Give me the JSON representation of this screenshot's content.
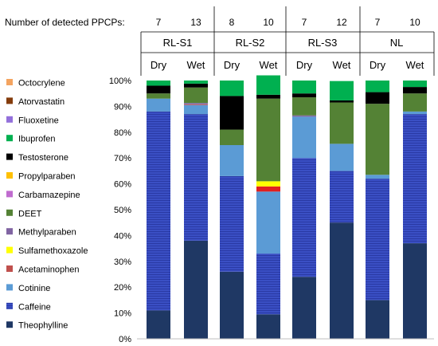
{
  "header": {
    "count_label": "Number of detected PPCPs:",
    "counts": [
      "7",
      "13",
      "8",
      "10",
      "7",
      "12",
      "7",
      "10"
    ],
    "groups": [
      "RL-S1",
      "RL-S2",
      "RL-S3",
      "NL"
    ],
    "conditions": [
      "Dry",
      "Wet",
      "Dry",
      "Wet",
      "Dry",
      "Wet",
      "Dry",
      "Wet"
    ]
  },
  "chart_data": {
    "type": "bar",
    "stacked": true,
    "percent": true,
    "ylim": [
      0,
      100
    ],
    "yticks": [
      "0%",
      "10%",
      "20%",
      "30%",
      "40%",
      "50%",
      "60%",
      "70%",
      "80%",
      "90%",
      "100%"
    ],
    "legend_position": "left",
    "categories": [
      "RL-S1 Dry",
      "RL-S1 Wet",
      "RL-S2 Dry",
      "RL-S2 Wet",
      "RL-S3 Dry",
      "RL-S3 Wet",
      "NL Dry",
      "NL Wet"
    ],
    "series": [
      {
        "name": "Theophylline",
        "color": "#1f3864",
        "values": [
          11,
          38,
          26,
          9.5,
          24,
          45,
          15,
          37
        ]
      },
      {
        "name": "Caffeine",
        "color": "#3a4fc4",
        "striped": true,
        "values": [
          77,
          49,
          37,
          23.5,
          46,
          20,
          47,
          50
        ]
      },
      {
        "name": "Cotinine",
        "color": "#5b9bd5",
        "values": [
          5,
          3.5,
          12,
          24,
          16,
          10.5,
          1.5,
          1
        ]
      },
      {
        "name": "Acetaminophen",
        "color": "#c0504d",
        "values": [
          0,
          0.3,
          0,
          0,
          0,
          0,
          0,
          0
        ]
      },
      {
        "name": "Sulfamethoxazole",
        "color": "#ffff00",
        "values": [
          0,
          0,
          0,
          2,
          0,
          0,
          0,
          0
        ]
      },
      {
        "name": "Methylparaben",
        "color": "#8064a2",
        "values": [
          0,
          0.5,
          0,
          0,
          0.5,
          0,
          0,
          0
        ]
      },
      {
        "name": "DEET",
        "color": "#548235",
        "values": [
          2,
          6,
          6,
          32,
          7,
          16,
          27.5,
          7
        ]
      },
      {
        "name": "Carbamazepine",
        "color": "#c06ccf",
        "values": [
          0,
          0,
          0,
          0,
          0,
          0,
          0,
          0
        ]
      },
      {
        "name": "Propylparaben",
        "color": "#ffc000",
        "values": [
          0,
          0,
          0,
          0,
          0,
          0,
          0,
          0
        ]
      },
      {
        "name": "Testosterone",
        "color": "#000000",
        "values": [
          3,
          1.5,
          13,
          1.5,
          1.5,
          0.8,
          4.5,
          2.5
        ]
      },
      {
        "name": "Ibuprofen",
        "color": "#00b050",
        "values": [
          2,
          1.2,
          6,
          7.5,
          5,
          7.5,
          4.5,
          2.5
        ]
      },
      {
        "name": "Fluoxetine",
        "color": "#9370db",
        "values": [
          0,
          0,
          0,
          0,
          0,
          0,
          0,
          0
        ]
      },
      {
        "name": "Atorvastatin",
        "color": "#843c0c",
        "values": [
          0,
          0,
          0,
          0,
          0,
          0,
          0,
          0
        ]
      },
      {
        "name": "Octocrylene",
        "color": "#f4a460",
        "values": [
          0,
          0,
          0,
          0,
          0,
          0,
          0,
          0
        ]
      }
    ],
    "red_band": {
      "name": "unlabeled red segment",
      "color": "#e02020",
      "category": "RL-S2 Wet",
      "value": 2
    }
  }
}
